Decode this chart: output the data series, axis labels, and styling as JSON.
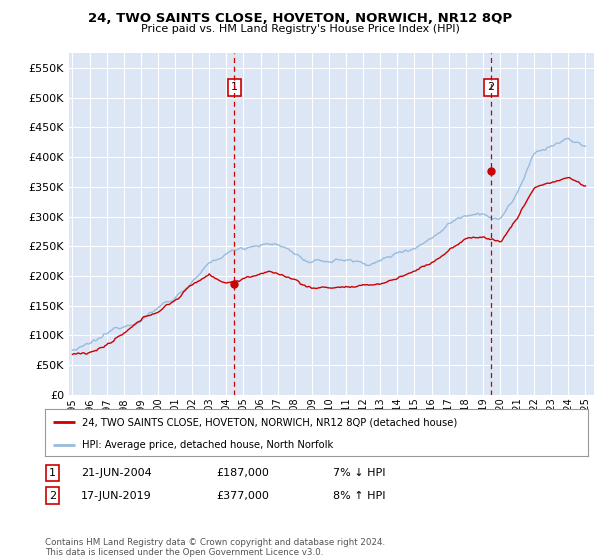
{
  "title": "24, TWO SAINTS CLOSE, HOVETON, NORWICH, NR12 8QP",
  "subtitle": "Price paid vs. HM Land Registry's House Price Index (HPI)",
  "legend_line1": "24, TWO SAINTS CLOSE, HOVETON, NORWICH, NR12 8QP (detached house)",
  "legend_line2": "HPI: Average price, detached house, North Norfolk",
  "annotation1_label": "1",
  "annotation1_date": "21-JUN-2004",
  "annotation1_price": "£187,000",
  "annotation1_hpi": "7% ↓ HPI",
  "annotation1_year": 2004.47,
  "annotation1_value": 187000,
  "annotation2_label": "2",
  "annotation2_date": "17-JUN-2019",
  "annotation2_price": "£377,000",
  "annotation2_hpi": "8% ↑ HPI",
  "annotation2_year": 2019.46,
  "annotation2_value": 377000,
  "ymin": 0,
  "ymax": 575000,
  "xmin": 1994.8,
  "xmax": 2025.5,
  "ylabel_step": 50000,
  "plot_bg_color": "#dce6f5",
  "grid_color": "#ffffff",
  "hpi_color": "#99bbdd",
  "price_color": "#cc0000",
  "footnote": "Contains HM Land Registry data © Crown copyright and database right 2024.\nThis data is licensed under the Open Government Licence v3.0.",
  "hpi_base": [
    1995,
    1996,
    1997,
    1998,
    1999,
    2000,
    2001,
    2002,
    2003,
    2004,
    2005,
    2006,
    2007,
    2008,
    2009,
    2010,
    2011,
    2012,
    2013,
    2014,
    2015,
    2016,
    2017,
    2018,
    2019,
    2020,
    2021,
    2022,
    2023,
    2024,
    2025
  ],
  "hpi_vals": [
    75000,
    80000,
    93000,
    110000,
    128000,
    148000,
    168000,
    195000,
    218000,
    235000,
    248000,
    258000,
    255000,
    242000,
    222000,
    225000,
    228000,
    222000,
    228000,
    240000,
    255000,
    272000,
    300000,
    318000,
    328000,
    315000,
    360000,
    420000,
    435000,
    445000,
    430000
  ],
  "price_base": [
    1995,
    1996,
    1997,
    1998,
    1999,
    2000,
    2001,
    2002,
    2003,
    2004,
    2005,
    2006,
    2007,
    2008,
    2009,
    2010,
    2011,
    2012,
    2013,
    2014,
    2015,
    2016,
    2017,
    2018,
    2019,
    2020,
    2021,
    2022,
    2023,
    2024,
    2025
  ],
  "price_vals": [
    68000,
    73000,
    85000,
    100000,
    118000,
    136000,
    155000,
    180000,
    200000,
    187000,
    195000,
    205000,
    202000,
    192000,
    178000,
    180000,
    182000,
    178000,
    183000,
    193000,
    205000,
    220000,
    242000,
    258000,
    265000,
    255000,
    295000,
    348000,
    358000,
    365000,
    350000
  ]
}
